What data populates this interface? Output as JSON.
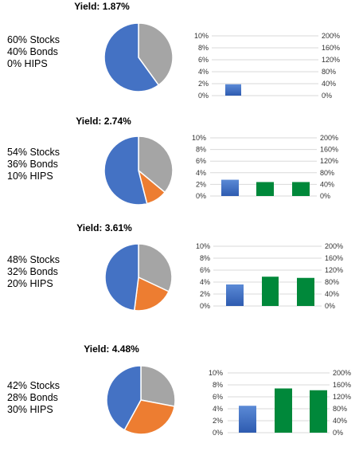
{
  "colors": {
    "stocks": "#4472c4",
    "bonds": "#a5a5a5",
    "hips": "#ed7d31",
    "bar_base": "#4472c4",
    "bar_other": "#00883a",
    "grid": "#d9d9d9"
  },
  "chart_data": [
    {
      "type": "pie",
      "title": "Yield: 1.87%",
      "allocation_labels": [
        "60% Stocks",
        "40% Bonds",
        "0% HIPS"
      ],
      "slices": [
        {
          "name": "Stocks",
          "value": 60
        },
        {
          "name": "Bonds",
          "value": 40
        },
        {
          "name": "HIPS",
          "value": 0
        }
      ],
      "bars": {
        "type": "bar",
        "left_axis": {
          "ylim": [
            0,
            10
          ],
          "ticks": [
            "10%",
            "8%",
            "6%",
            "4%",
            "2%",
            "0%"
          ]
        },
        "right_axis": {
          "ylim": [
            0,
            200
          ],
          "ticks": [
            "200%",
            "160%",
            "120%",
            "80%",
            "40%",
            "0%"
          ]
        },
        "values": [
          1.9
        ],
        "grid": true
      }
    },
    {
      "type": "pie",
      "title": "Yield: 2.74%",
      "allocation_labels": [
        "54% Stocks",
        "36% Bonds",
        "10% HIPS"
      ],
      "slices": [
        {
          "name": "Stocks",
          "value": 54
        },
        {
          "name": "Bonds",
          "value": 36
        },
        {
          "name": "HIPS",
          "value": 10
        }
      ],
      "bars": {
        "type": "bar",
        "left_axis": {
          "ylim": [
            0,
            10
          ],
          "ticks": [
            "10%",
            "8%",
            "6%",
            "4%",
            "2%",
            "0%"
          ]
        },
        "right_axis": {
          "ylim": [
            0,
            200
          ],
          "ticks": [
            "200%",
            "160%",
            "120%",
            "80%",
            "40%",
            "0%"
          ]
        },
        "values": [
          2.8,
          2.4,
          2.4
        ],
        "grid": true
      }
    },
    {
      "type": "pie",
      "title": "Yield: 3.61%",
      "allocation_labels": [
        "48% Stocks",
        "32% Bonds",
        "20% HIPS"
      ],
      "slices": [
        {
          "name": "Stocks",
          "value": 48
        },
        {
          "name": "Bonds",
          "value": 32
        },
        {
          "name": "HIPS",
          "value": 20
        }
      ],
      "bars": {
        "type": "bar",
        "left_axis": {
          "ylim": [
            0,
            10
          ],
          "ticks": [
            "10%",
            "8%",
            "6%",
            "4%",
            "2%",
            "0%"
          ]
        },
        "right_axis": {
          "ylim": [
            0,
            200
          ],
          "ticks": [
            "200%",
            "160%",
            "120%",
            "80%",
            "40%",
            "0%"
          ]
        },
        "values": [
          3.6,
          4.9,
          4.7
        ],
        "grid": true
      }
    },
    {
      "type": "pie",
      "title": "Yield: 4.48%",
      "allocation_labels": [
        "42% Stocks",
        "28% Bonds",
        "30% HIPS"
      ],
      "slices": [
        {
          "name": "Stocks",
          "value": 42
        },
        {
          "name": "Bonds",
          "value": 28
        },
        {
          "name": "HIPS",
          "value": 30
        }
      ],
      "bars": {
        "type": "bar",
        "left_axis": {
          "ylim": [
            0,
            10
          ],
          "ticks": [
            "10%",
            "8%",
            "6%",
            "4%",
            "2%",
            "0%"
          ]
        },
        "right_axis": {
          "ylim": [
            0,
            200
          ],
          "ticks": [
            "200%",
            "160%",
            "120%",
            "80%",
            "40%",
            "0%"
          ]
        },
        "values": [
          4.5,
          7.4,
          7.1
        ],
        "grid": true
      }
    }
  ]
}
